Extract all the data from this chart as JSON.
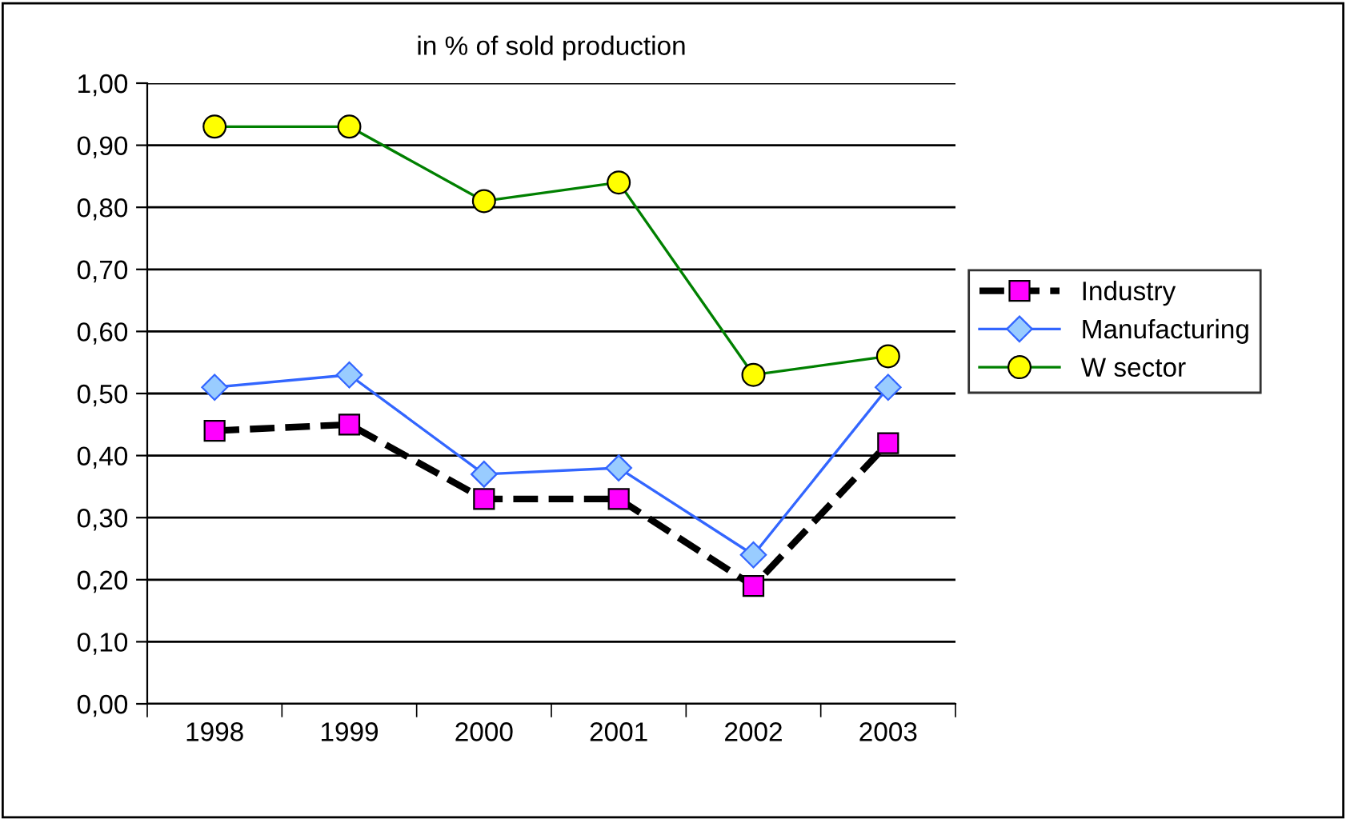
{
  "chart_data": {
    "type": "line",
    "title": "in % of sold production",
    "categories": [
      "1998",
      "1999",
      "2000",
      "2001",
      "2002",
      "2003"
    ],
    "series": [
      {
        "name": "Industry",
        "color": "#000000",
        "colors": [
          "#ff00ff",
          "#ff00ff",
          "#ff00ff",
          "#ff00ff",
          "#ff00ff",
          "#ff00ff"
        ],
        "marker": "square",
        "line_style": "dashed",
        "values": [
          0.44,
          0.45,
          0.33,
          0.33,
          0.19,
          0.42
        ]
      },
      {
        "name": "Manufacturing",
        "color": "#3366ff",
        "colors": [
          "#99ccff",
          "#99ccff",
          "#99ccff",
          "#99ccff",
          "#99ccff",
          "#99ccff"
        ],
        "marker": "diamond",
        "line_style": "solid",
        "values": [
          0.51,
          0.53,
          0.37,
          0.38,
          0.24,
          0.51
        ]
      },
      {
        "name": "W sector",
        "color": "#008000",
        "colors": [
          "#ffff00",
          "#ffff00",
          "#ffff00",
          "#ffff00",
          "#ffff00",
          "#ffff00"
        ],
        "marker": "circle",
        "line_style": "solid",
        "values": [
          0.93,
          0.93,
          0.81,
          0.84,
          0.53,
          0.56
        ]
      }
    ],
    "ylim": [
      0,
      1
    ],
    "yticks": [
      {
        "value": 0,
        "label": "0,00"
      },
      {
        "value": 0.1,
        "label": "0,10"
      },
      {
        "value": 0.2,
        "label": "0,20"
      },
      {
        "value": 0.3,
        "label": "0,30"
      },
      {
        "value": 0.4,
        "label": "0,40"
      },
      {
        "value": 0.5,
        "label": "0,50"
      },
      {
        "value": 0.6,
        "label": "0,60"
      },
      {
        "value": 0.7,
        "label": "0,70"
      },
      {
        "value": 0.8,
        "label": "0,80"
      },
      {
        "value": 0.9,
        "label": "0,90"
      },
      {
        "value": 1,
        "label": "1,00"
      }
    ],
    "grid": "y",
    "legend": "right"
  }
}
